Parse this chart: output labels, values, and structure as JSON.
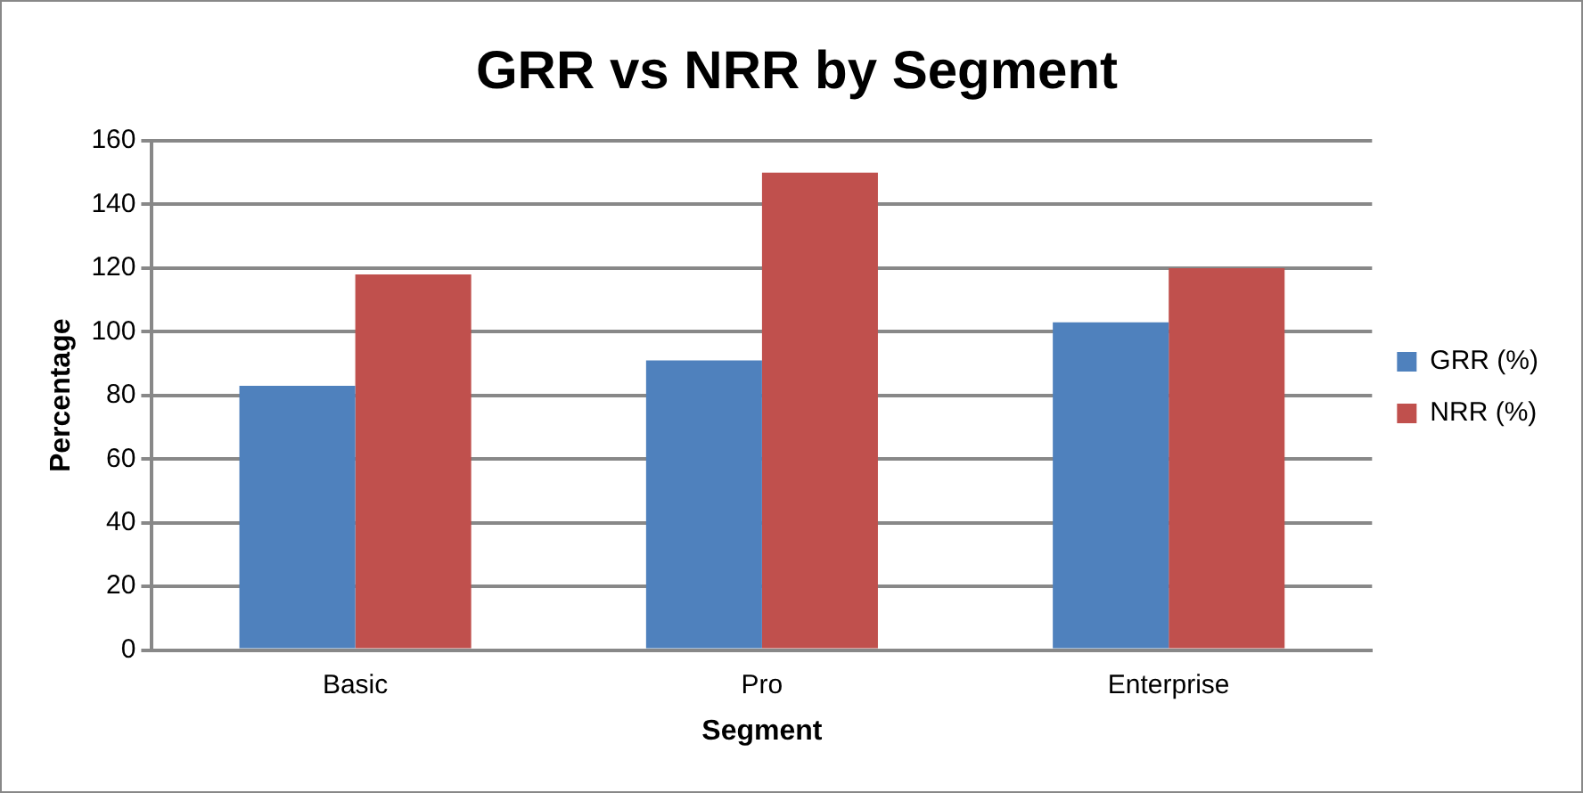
{
  "chart_data": {
    "type": "bar",
    "title": "GRR vs NRR by Segment",
    "xlabel": "Segment",
    "ylabel": "Percentage",
    "categories": [
      "Basic",
      "Pro",
      "Enterprise"
    ],
    "series": [
      {
        "name": "GRR (%)",
        "color": "#4f81bd",
        "values": [
          83,
          91,
          103
        ]
      },
      {
        "name": "NRR (%)",
        "color": "#c0504d",
        "values": [
          118,
          150,
          120
        ]
      }
    ],
    "ylim": [
      0,
      160
    ],
    "yticks": [
      0,
      20,
      40,
      60,
      80,
      100,
      120,
      140,
      160
    ],
    "grid": "y",
    "legend": "right"
  }
}
